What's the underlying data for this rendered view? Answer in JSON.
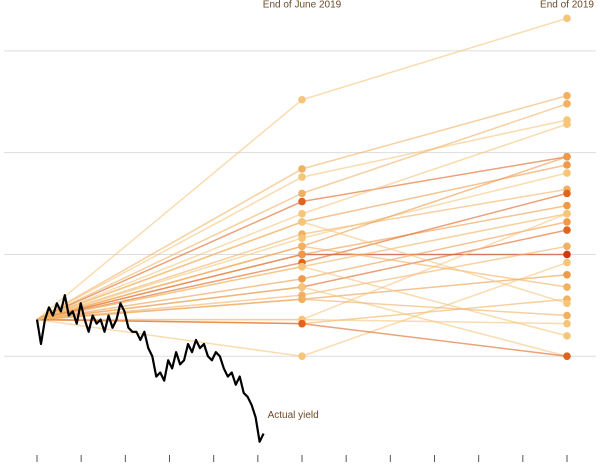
{
  "chart_data": {
    "type": "line",
    "column_labels": [
      "End of June 2019",
      "End of 2019"
    ],
    "forecast_x": [
      6,
      12
    ],
    "xlim": [
      0,
      12
    ],
    "xticks": [
      0,
      1,
      2,
      3,
      4,
      5,
      6,
      7,
      8,
      9,
      10,
      11,
      12
    ],
    "ylim": [
      2.25,
      3.375
    ],
    "yticks": [
      2.5,
      2.75,
      3,
      3.25
    ],
    "grid": true,
    "actual": {
      "name": "Actual yield",
      "color": "#000000",
      "x": [
        0,
        0.09,
        0.18,
        0.27,
        0.36,
        0.45,
        0.54,
        0.63,
        0.72,
        0.81,
        0.9,
        0.99,
        1.08,
        1.17,
        1.26,
        1.35,
        1.44,
        1.53,
        1.62,
        1.71,
        1.8,
        1.89,
        1.98,
        2.07,
        2.16,
        2.25,
        2.34,
        2.43,
        2.52,
        2.61,
        2.7,
        2.79,
        2.88,
        2.97,
        3.06,
        3.15,
        3.24,
        3.33,
        3.42,
        3.51,
        3.6,
        3.69,
        3.78,
        3.87,
        3.96,
        4.05,
        4.14,
        4.23,
        4.32,
        4.41,
        4.5,
        4.59,
        4.68,
        4.77,
        4.86,
        4.95,
        5.04,
        5.13
      ],
      "values": [
        2.59,
        2.53,
        2.59,
        2.62,
        2.6,
        2.63,
        2.61,
        2.65,
        2.6,
        2.61,
        2.58,
        2.63,
        2.59,
        2.56,
        2.6,
        2.58,
        2.59,
        2.56,
        2.6,
        2.57,
        2.59,
        2.63,
        2.61,
        2.57,
        2.56,
        2.56,
        2.54,
        2.56,
        2.52,
        2.5,
        2.45,
        2.46,
        2.44,
        2.49,
        2.47,
        2.51,
        2.48,
        2.49,
        2.53,
        2.51,
        2.54,
        2.52,
        2.53,
        2.5,
        2.49,
        2.51,
        2.5,
        2.47,
        2.45,
        2.46,
        2.43,
        2.45,
        2.41,
        2.4,
        2.38,
        2.35,
        2.29,
        2.31
      ]
    },
    "series": [
      {
        "color": "#f5c57a",
        "values": [
          3.13,
          3.33
        ]
      },
      {
        "color": "#f2b062",
        "values": [
          2.96,
          3.14
        ]
      },
      {
        "color": "#f5c57a",
        "values": [
          2.94,
          3.08
        ]
      },
      {
        "color": "#f2b062",
        "values": [
          2.9,
          3.12
        ]
      },
      {
        "color": "#e0641f",
        "values": [
          2.88,
          2.99
        ]
      },
      {
        "color": "#f5c57a",
        "values": [
          2.85,
          3.07
        ]
      },
      {
        "color": "#ee9a4a",
        "values": [
          2.83,
          2.97
        ]
      },
      {
        "color": "#f2b062",
        "values": [
          2.8,
          2.91
        ]
      },
      {
        "color": "#f5c57a",
        "values": [
          2.79,
          2.95
        ]
      },
      {
        "color": "#ee9a4a",
        "values": [
          2.77,
          2.99
        ]
      },
      {
        "color": "#d0390f",
        "values": [
          2.75,
          2.75
        ]
      },
      {
        "color": "#ee9a4a",
        "values": [
          2.75,
          2.87
        ]
      },
      {
        "color": "#e0641f",
        "values": [
          2.73,
          2.9
        ]
      },
      {
        "color": "#f2b062",
        "values": [
          2.72,
          2.85
        ]
      },
      {
        "color": "#ee9a4a",
        "values": [
          2.69,
          2.83
        ]
      },
      {
        "color": "#e0641f",
        "values": [
          2.67,
          2.81
        ]
      },
      {
        "color": "#f2b062",
        "values": [
          2.65,
          2.77
        ]
      },
      {
        "color": "#ee9a4a",
        "values": [
          2.64,
          2.7
        ]
      },
      {
        "color": "#f5c57a",
        "values": [
          2.59,
          2.85
        ]
      },
      {
        "color": "#f2b062",
        "values": [
          2.58,
          2.64
        ]
      },
      {
        "color": "#f5c57a",
        "values": [
          2.5,
          2.73
        ]
      },
      {
        "color": "#f5c57a",
        "values": [
          2.67,
          2.5
        ]
      },
      {
        "color": "#f2b062",
        "values": [
          2.64,
          2.6
        ]
      },
      {
        "color": "#f5c57a",
        "values": [
          2.59,
          2.58
        ]
      },
      {
        "color": "#e0641f",
        "values": [
          2.58,
          2.5
        ]
      },
      {
        "color": "#f5c57a",
        "values": [
          2.72,
          2.55
        ]
      },
      {
        "color": "#f2b062",
        "values": [
          2.77,
          2.67
        ]
      },
      {
        "color": "#f5c57a",
        "values": [
          2.83,
          2.63
        ]
      }
    ]
  }
}
